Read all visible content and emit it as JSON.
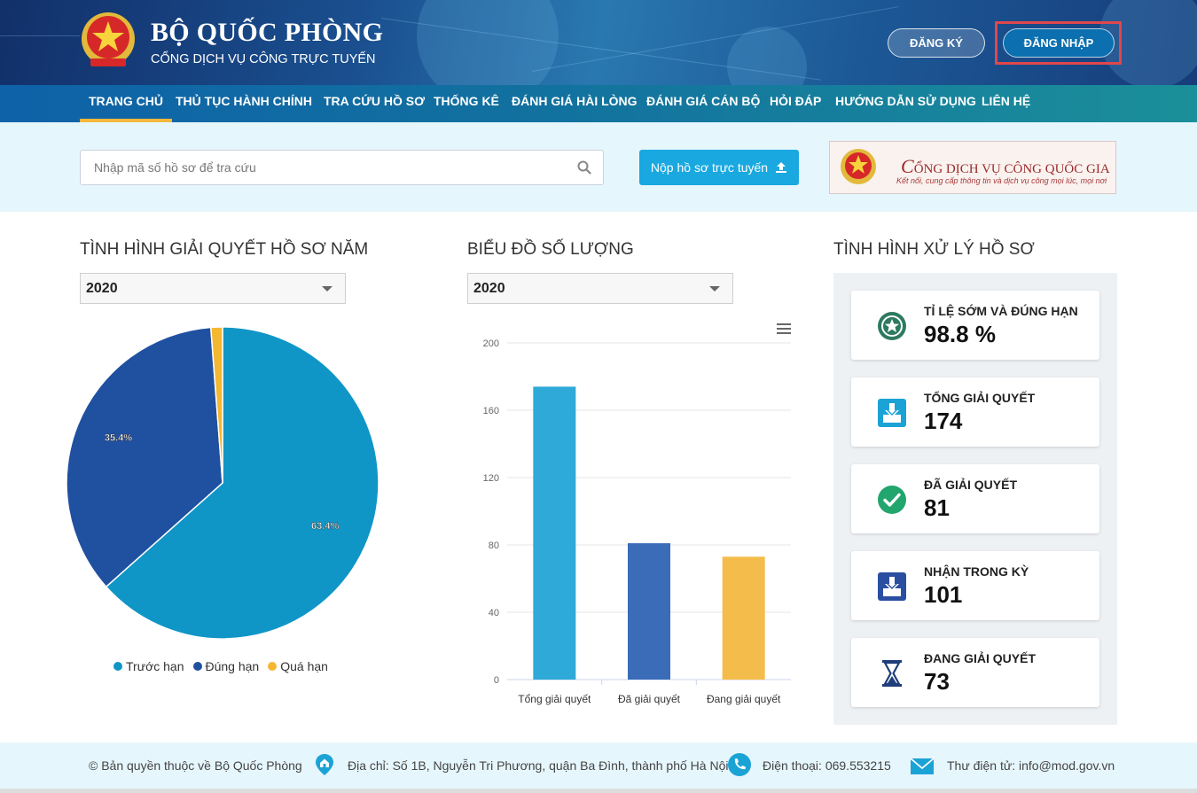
{
  "header": {
    "title": "BỘ QUỐC PHÒNG",
    "subtitle": "CỔNG DỊCH VỤ CÔNG TRỰC TUYẾN",
    "register_label": "ĐĂNG KÝ",
    "login_label": "ĐĂNG NHẬP"
  },
  "nav": {
    "items": [
      {
        "label": "TRANG CHỦ",
        "active": true
      },
      {
        "label": "THỦ TỤC HÀNH CHÍNH"
      },
      {
        "label": "TRA CỨU HỒ SƠ"
      },
      {
        "label": "THỐNG KÊ"
      },
      {
        "label": "ĐÁNH GIÁ HÀI LÒNG"
      },
      {
        "label": "ĐÁNH GIÁ CÁN BỘ"
      },
      {
        "label": "HỎI ĐÁP"
      },
      {
        "label": "HƯỚNG DẪN SỬ DỤNG"
      },
      {
        "label": "LIÊN HỆ"
      }
    ]
  },
  "search": {
    "placeholder": "Nhập mã số hồ sơ để tra cứu",
    "value": "",
    "submit_label": "Nộp hồ sơ trực tuyến"
  },
  "banner": {
    "title_initial": "C",
    "title_rest": "ỔNG DỊCH VỤ CÔNG QUỐC GIA",
    "tagline": "Kết nối, cung cấp thông tin và dịch vụ công mọi lúc, mọi nơi"
  },
  "sections": {
    "pie_title": "TÌNH HÌNH GIẢI QUYẾT HỒ SƠ NĂM",
    "pie_year": "2020",
    "bar_title": "BIỂU ĐỒ SỐ LƯỢNG",
    "bar_year": "2020",
    "stats_title": "TÌNH HÌNH XỬ LÝ HỒ SƠ"
  },
  "stats": [
    {
      "label": "TỈ LỆ SỚM VÀ ĐÚNG HẠN",
      "value": "98.8 %",
      "icon": "badge-star-icon"
    },
    {
      "label": "TỔNG GIẢI QUYẾT",
      "value": "174",
      "icon": "inbox-download-icon"
    },
    {
      "label": "ĐÃ GIẢI QUYẾT",
      "value": "81",
      "icon": "check-circle-icon"
    },
    {
      "label": "NHẬN TRONG KỲ",
      "value": "101",
      "icon": "inbox-download-icon"
    },
    {
      "label": "ĐANG GIẢI QUYẾT",
      "value": "73",
      "icon": "hourglass-icon"
    }
  ],
  "footer": {
    "copyright": "© Bản quyền thuộc về Bộ Quốc Phòng",
    "address": "Địa chỉ: Số 1B, Nguyễn Tri Phương, quận Ba Đình, thành phố Hà Nội",
    "phone": "Điện thoại: 069.553215",
    "email": "Thư điện tử: info@mod.gov.vn"
  },
  "colors": {
    "header_dark": "#12306a",
    "nav_blue": "#0e62a8",
    "accent_cyan": "#19a8e0",
    "pie_before": "#0f96c6",
    "pie_ontime": "#2050a0",
    "pie_late": "#f4b731",
    "bar_total": "#2ea9d8",
    "bar_done": "#3a6cb8",
    "bar_pending": "#f4bc4a",
    "login_highlight": "#e0474c"
  },
  "chart_data": [
    {
      "type": "pie",
      "categories": [
        "Trước hạn",
        "Đúng hạn",
        "Quá hạn"
      ],
      "values": [
        63.4,
        35.4,
        1.2
      ],
      "labels": [
        "63.4%",
        "35.4%",
        ""
      ],
      "colors": [
        "#0f96c6",
        "#2050a0",
        "#f4b731"
      ],
      "legend": "bottom"
    },
    {
      "type": "bar",
      "categories": [
        "Tổng giải quyết",
        "Đã giải quyết",
        "Đang giải quyết"
      ],
      "values": [
        174,
        81,
        73
      ],
      "colors": [
        "#2ea9d8",
        "#3a6cb8",
        "#f4bc4a"
      ],
      "ylim": [
        0,
        200
      ],
      "yticks": [
        0,
        40,
        80,
        120,
        160,
        200
      ],
      "grid": true
    }
  ]
}
